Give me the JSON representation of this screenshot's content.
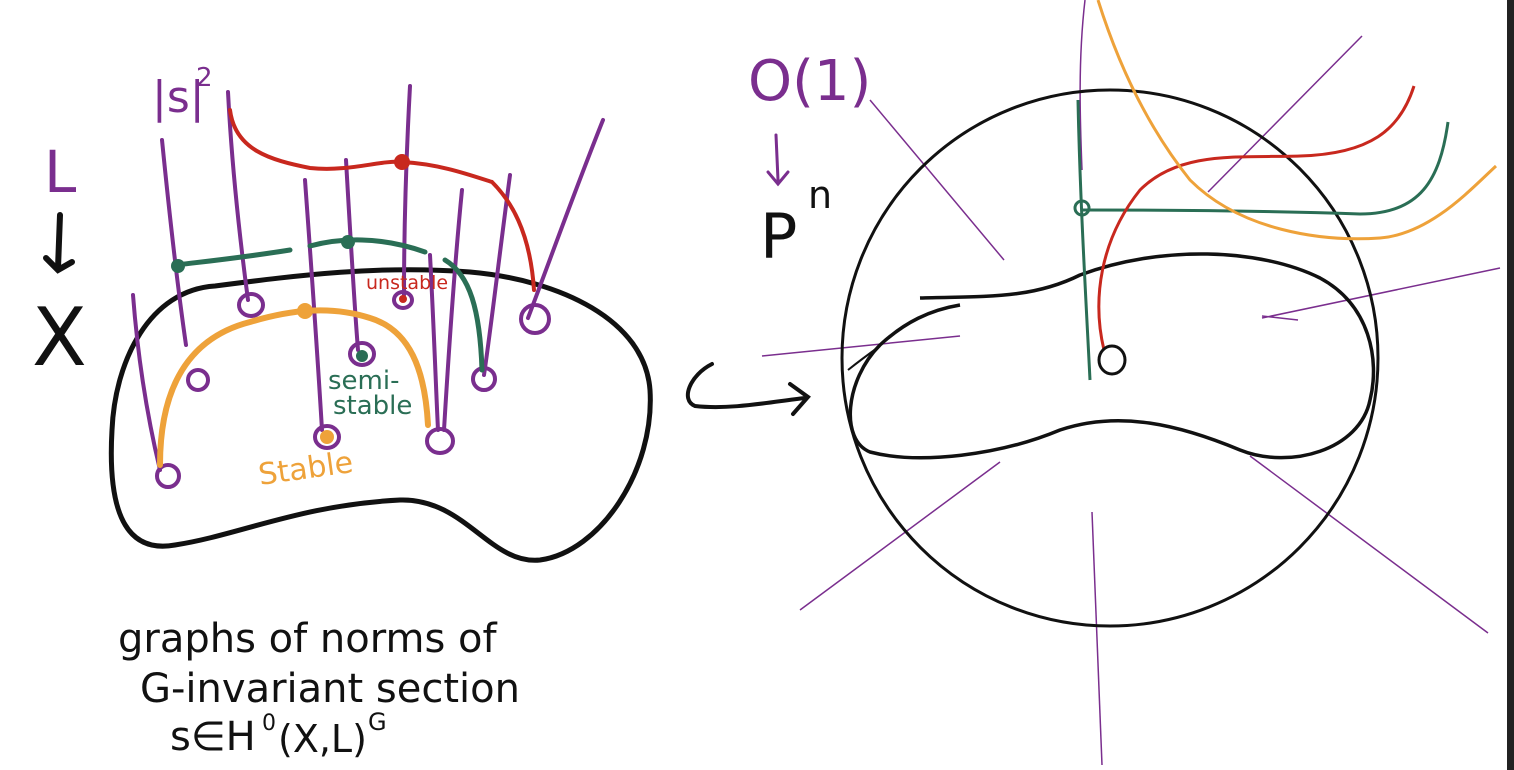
{
  "colors": {
    "purple": "#7a2e8e",
    "red": "#c8281e",
    "green": "#2a6e55",
    "orange": "#eea23a",
    "black": "#111111"
  },
  "left_diagram": {
    "bundle_label": "L",
    "base_label": "X",
    "norm_label": "|s|",
    "norm_exponent": "2",
    "unstable_label": "unstable",
    "semistable_label_1": "semi-",
    "semistable_label_2": "stable",
    "stable_label": "Stable"
  },
  "right_diagram": {
    "sheaf_label": "O(1)",
    "projective_label": "P",
    "projective_exponent": "n"
  },
  "caption": {
    "line1": "graphs of norms of",
    "line2": "G-invariant section",
    "line3": "s∈H",
    "line3_exp": "0",
    "line3_mid": "(X,L)",
    "line3_sup": "G"
  }
}
